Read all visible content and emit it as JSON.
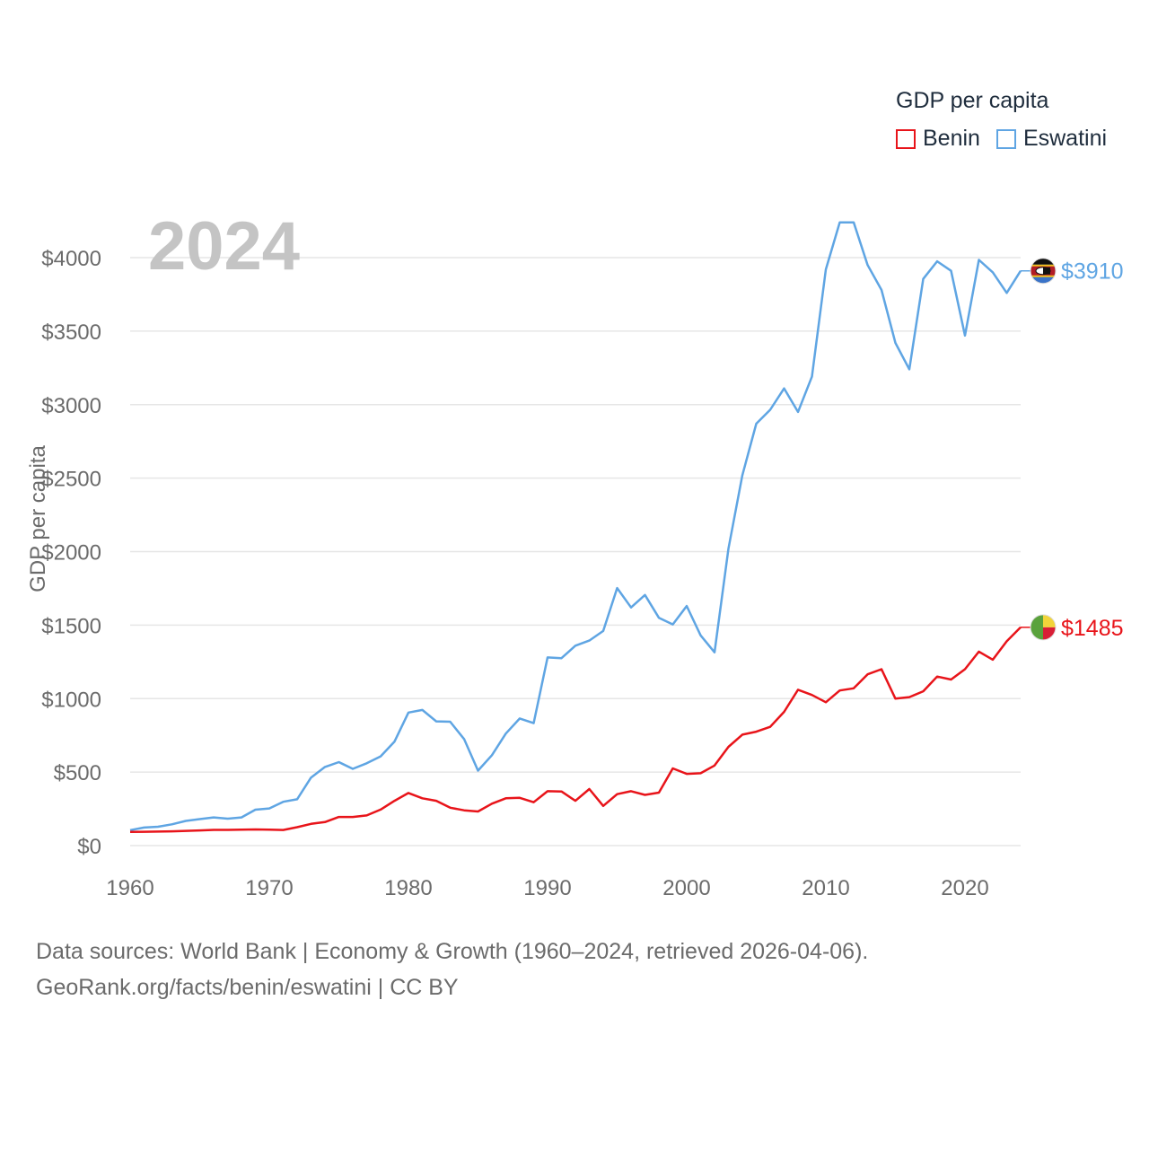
{
  "legend": {
    "title": "GDP per capita",
    "items": [
      {
        "label": "Benin",
        "color": "#e8141a"
      },
      {
        "label": "Eswatini",
        "color": "#5fa5e3"
      }
    ]
  },
  "footer": {
    "line1": "Data sources: World Bank | Economy & Growth (1960–2024, retrieved 2026-04-06).",
    "line2": "GeoRank.org/facts/benin/eswatini | CC BY"
  },
  "chart_data": {
    "type": "line",
    "watermark_year": "2024",
    "ylabel": "GDP per capita",
    "xlabel": "",
    "xlim": [
      1960,
      2024
    ],
    "ylim": [
      0,
      4000
    ],
    "y_ticks": [
      0,
      500,
      1000,
      1500,
      2000,
      2500,
      3000,
      3500,
      4000
    ],
    "y_tick_labels": [
      "$0",
      "$500",
      "$1000",
      "$1500",
      "$2000",
      "$2500",
      "$3000",
      "$3500",
      "$4000"
    ],
    "x_ticks": [
      1960,
      1970,
      1980,
      1990,
      2000,
      2010,
      2020
    ],
    "x_tick_labels": [
      "1960",
      "1970",
      "1980",
      "1990",
      "2000",
      "2010",
      "2020"
    ],
    "x": [
      1960,
      1961,
      1962,
      1963,
      1964,
      1965,
      1966,
      1967,
      1968,
      1969,
      1970,
      1971,
      1972,
      1973,
      1974,
      1975,
      1976,
      1977,
      1978,
      1979,
      1980,
      1981,
      1982,
      1983,
      1984,
      1985,
      1986,
      1987,
      1988,
      1989,
      1990,
      1991,
      1992,
      1993,
      1994,
      1995,
      1996,
      1997,
      1998,
      1999,
      2000,
      2001,
      2002,
      2003,
      2004,
      2005,
      2006,
      2007,
      2008,
      2009,
      2010,
      2011,
      2012,
      2013,
      2014,
      2015,
      2016,
      2017,
      2018,
      2019,
      2020,
      2021,
      2022,
      2023,
      2024
    ],
    "series": [
      {
        "name": "Eswatini",
        "color": "#5fa5e3",
        "end_label": "$3910",
        "values": [
          105,
          123,
          128,
          145,
          168,
          180,
          192,
          183,
          192,
          244,
          253,
          298,
          315,
          463,
          535,
          568,
          522,
          560,
          607,
          708,
          905,
          923,
          845,
          843,
          725,
          510,
          615,
          762,
          865,
          833,
          1280,
          1275,
          1360,
          1395,
          1460,
          1752,
          1620,
          1705,
          1550,
          1505,
          1630,
          1430,
          1315,
          2020,
          2520,
          2870,
          2965,
          3110,
          2950,
          3190,
          3920,
          4240,
          4240,
          3950,
          3780,
          3420,
          3240,
          3855,
          3975,
          3910,
          3470,
          3985,
          3900,
          3760,
          3910
        ]
      },
      {
        "name": "Benin",
        "color": "#e8141a",
        "end_label": "$1485",
        "values": [
          93,
          94,
          95,
          97,
          100,
          103,
          107,
          107,
          109,
          110,
          108,
          106,
          125,
          148,
          160,
          195,
          195,
          205,
          245,
          305,
          358,
          322,
          305,
          258,
          240,
          232,
          285,
          322,
          325,
          295,
          370,
          368,
          305,
          385,
          270,
          350,
          370,
          345,
          360,
          525,
          488,
          492,
          545,
          672,
          755,
          775,
          808,
          910,
          1060,
          1025,
          975,
          1055,
          1070,
          1165,
          1200,
          1000,
          1010,
          1050,
          1150,
          1130,
          1200,
          1320,
          1265,
          1390,
          1485
        ]
      }
    ]
  }
}
